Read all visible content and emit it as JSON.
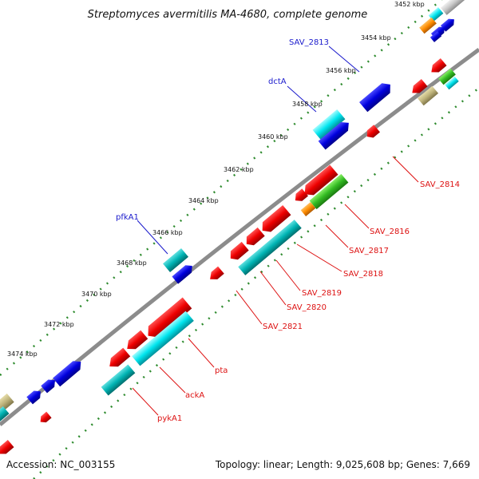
{
  "title": "Streptomyces avermitilis MA-4680, complete genome",
  "footer": {
    "accession": "Accession: NC_003155",
    "summary": "Topology: linear; Length: 9,025,608 bp; Genes: 7,669"
  },
  "colors": {
    "backbone": "#8c8c8c",
    "tick": "#2e8b2e",
    "forward_label": "#1a1acc",
    "reverse_label": "#dd1111"
  },
  "ticks": [
    {
      "label": "3452 kbp"
    },
    {
      "label": "3454 kbp"
    },
    {
      "label": "3456 kbp"
    },
    {
      "label": "3458 kbp"
    },
    {
      "label": "3460 kbp"
    },
    {
      "label": "3462 kbp"
    },
    {
      "label": "3464 kbp"
    },
    {
      "label": "3466 kbp"
    },
    {
      "label": "3468 kbp"
    },
    {
      "label": "3470 kbp"
    },
    {
      "label": "3472 kbp"
    },
    {
      "label": "3474 kbp"
    }
  ],
  "forward_labels": [
    {
      "label": "SAV_2813"
    },
    {
      "label": "dctA"
    },
    {
      "label": "pfkA1"
    }
  ],
  "reverse_labels": [
    {
      "label": "SAV_2814"
    },
    {
      "label": "SAV_2816"
    },
    {
      "label": "SAV_2817"
    },
    {
      "label": "SAV_2818"
    },
    {
      "label": "SAV_2819"
    },
    {
      "label": "SAV_2820"
    },
    {
      "label": "SAV_2821"
    },
    {
      "label": "pta"
    },
    {
      "label": "ackA"
    },
    {
      "label": "pykA1"
    }
  ]
}
